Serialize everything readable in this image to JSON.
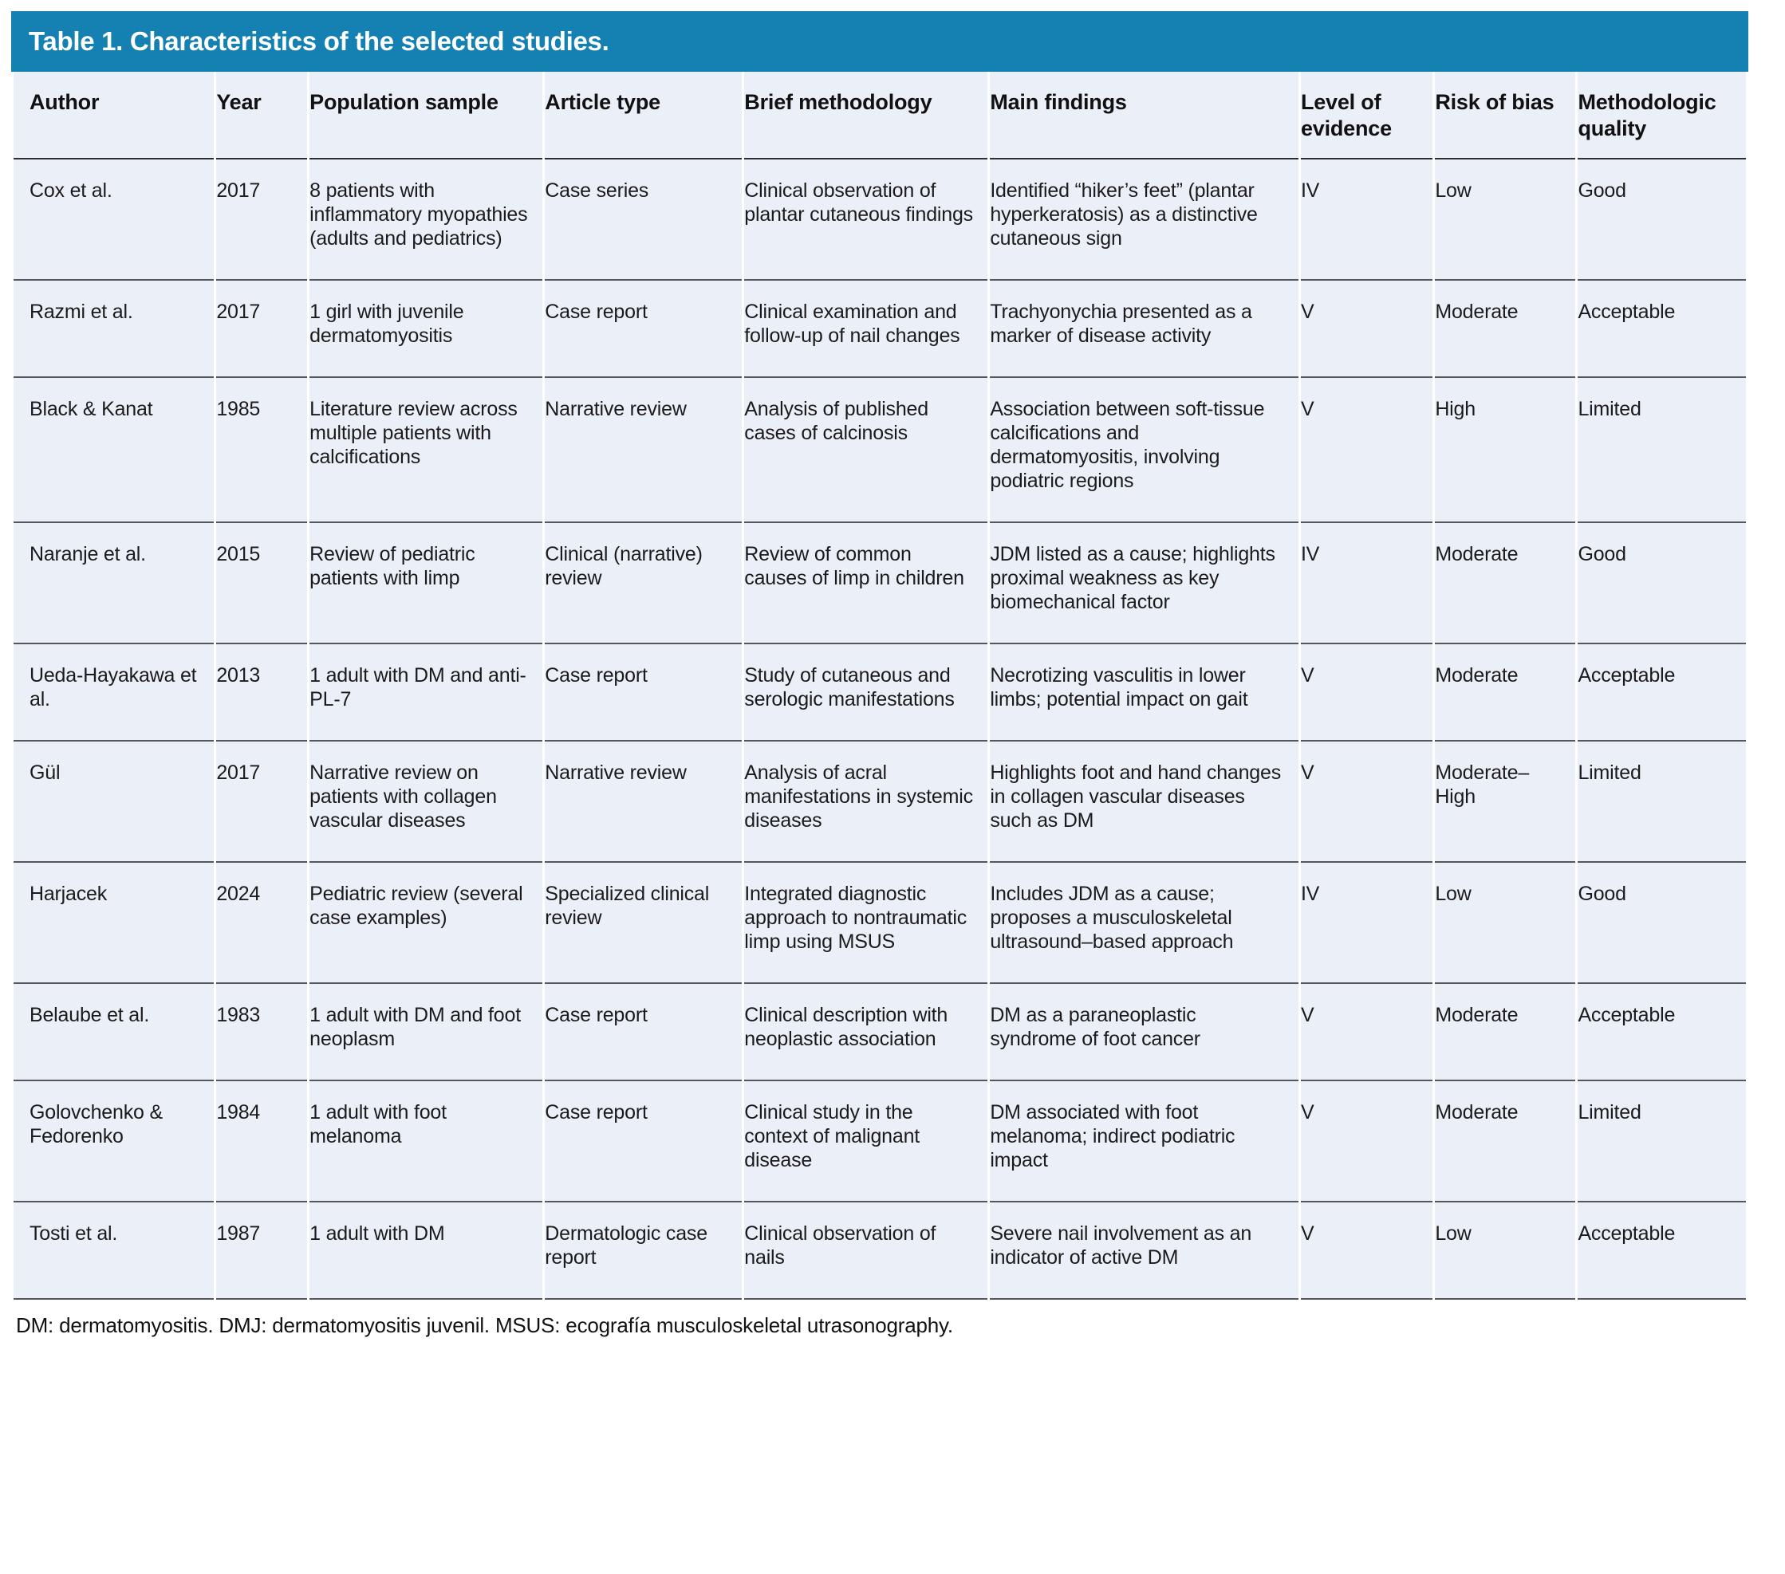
{
  "title": "Table 1. Characteristics of the selected studies.",
  "colors": {
    "title_bar_bg": "#1580b2",
    "title_text": "#ffffff",
    "table_body_bg": "#ebeff7",
    "row_separator": "#54565b",
    "header_separator": "#2d2e30"
  },
  "table": {
    "columns": [
      "Author",
      "Year",
      "Population sample",
      "Article type",
      "Brief methodology",
      "Main findings",
      "Level of evidence",
      "Risk of bias",
      "Methodologic quality"
    ],
    "rows": [
      {
        "author": "Cox et al.",
        "year": "2017",
        "population": "8 patients with inflammatory myopathies (adults and pediatrics)",
        "article_type": "Case series",
        "methodology": "Clinical observation of plantar cutaneous findings",
        "findings": "Identified “hiker’s feet” (plantar hyperkeratosis) as a distinctive cutaneous sign",
        "evidence": "IV",
        "bias": "Low",
        "quality": "Good"
      },
      {
        "author": "Razmi et al.",
        "year": "2017",
        "population": "1 girl with juvenile dermatomyositis",
        "article_type": "Case report",
        "methodology": "Clinical examination and follow-up of nail changes",
        "findings": "Trachyonychia presented as a marker of disease activity",
        "evidence": "V",
        "bias": "Moderate",
        "quality": "Acceptable"
      },
      {
        "author": "Black & Kanat",
        "year": "1985",
        "population": "Literature review across multiple patients with calcifications",
        "article_type": "Narrative review",
        "methodology": "Analysis of published cases of calcinosis",
        "findings": "Association between soft-tissue calcifications and dermatomyositis, involving podiatric regions",
        "evidence": "V",
        "bias": "High",
        "quality": "Limited"
      },
      {
        "author": "Naranje et al.",
        "year": "2015",
        "population": "Review of pediatric patients with limp",
        "article_type": "Clinical (narrative) review",
        "methodology": "Review of common causes of limp in children",
        "findings": "JDM listed as a cause; highlights proximal weakness as key biomechanical factor",
        "evidence": "IV",
        "bias": "Moderate",
        "quality": "Good"
      },
      {
        "author": "Ueda-Hayakawa et al.",
        "year": "2013",
        "population": "1 adult with DM and anti-PL-7",
        "article_type": "Case report",
        "methodology": "Study of cutaneous and serologic manifestations",
        "findings": "Necrotizing vasculitis in lower limbs; potential impact on gait",
        "evidence": "V",
        "bias": "Moderate",
        "quality": "Acceptable"
      },
      {
        "author": "Gül",
        "year": "2017",
        "population": "Narrative review on patients with collagen vascular diseases",
        "article_type": "Narrative review",
        "methodology": "Analysis of acral manifestations in systemic diseases",
        "findings": "Highlights foot and hand changes in collagen vascular diseases such as DM",
        "evidence": "V",
        "bias": "Moderate–High",
        "quality": "Limited"
      },
      {
        "author": "Harjacek",
        "year": "2024",
        "population": "Pediatric review (several case examples)",
        "article_type": "Specialized clinical review",
        "methodology": "Integrated diagnostic approach to nontraumatic limp using MSUS",
        "findings": "Includes JDM as a cause; proposes a musculoskeletal ultrasound–based approach",
        "evidence": "IV",
        "bias": "Low",
        "quality": "Good"
      },
      {
        "author": "Belaube et al.",
        "year": "1983",
        "population": "1 adult with DM and foot neoplasm",
        "article_type": "Case report",
        "methodology": "Clinical description with neoplastic association",
        "findings": "DM as a paraneoplastic syndrome of foot cancer",
        "evidence": "V",
        "bias": "Moderate",
        "quality": "Acceptable"
      },
      {
        "author": "Golovchenko & Fedorenko",
        "year": "1984",
        "population": "1 adult with foot melanoma",
        "article_type": "Case report",
        "methodology": "Clinical study in the context of malignant disease",
        "findings": "DM associated with foot melanoma; indirect podiatric impact",
        "evidence": "V",
        "bias": "Moderate",
        "quality": "Limited"
      },
      {
        "author": "Tosti et al.",
        "year": "1987",
        "population": "1 adult with DM",
        "article_type": "Dermatologic case report",
        "methodology": "Clinical observation of nails",
        "findings": "Severe nail involvement as an indicator of active DM",
        "evidence": "V",
        "bias": "Low",
        "quality": "Acceptable"
      }
    ]
  },
  "footnote": "DM: dermatomyositis. DMJ: dermatomyositis juvenil. MSUS: ecografía musculoskeletal utrasonography."
}
